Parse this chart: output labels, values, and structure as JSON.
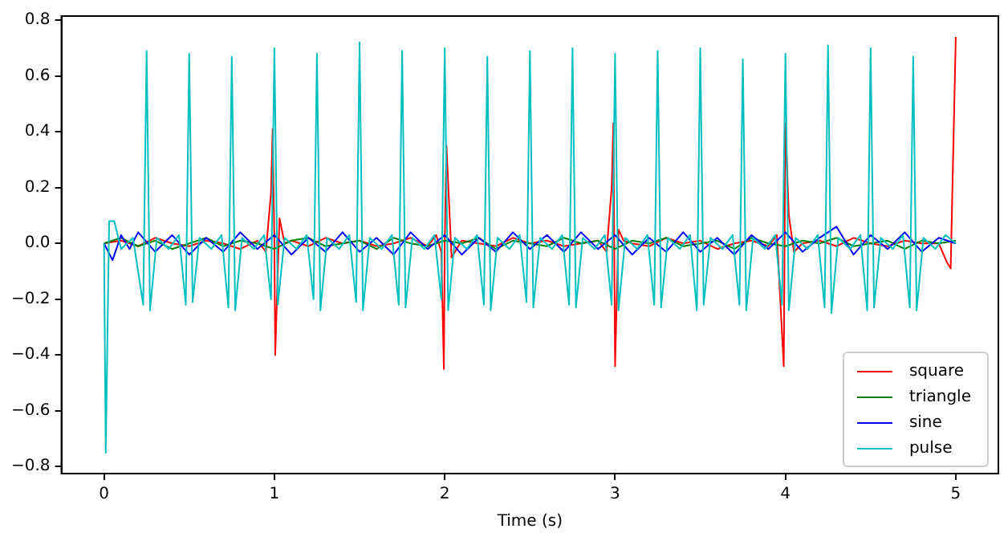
{
  "chart_data": {
    "type": "line",
    "xlabel": "Time (s)",
    "xlim": [
      -0.25,
      5.25
    ],
    "ylim": [
      -0.825,
      0.815
    ],
    "xticks": [
      0,
      1,
      2,
      3,
      4,
      5
    ],
    "yticks": [
      {
        "value": -0.8,
        "label": "−0.8"
      },
      {
        "value": -0.6,
        "label": "−0.6"
      },
      {
        "value": -0.4,
        "label": "−0.4"
      },
      {
        "value": -0.2,
        "label": "−0.2"
      },
      {
        "value": 0,
        "label": "0.0"
      },
      0.2,
      0.4,
      0.6,
      0.8
    ],
    "grid": false,
    "legend": "bottom right",
    "marker": "none",
    "line_style": "solid",
    "series": [
      {
        "name": "square",
        "color": "#ff0000",
        "x": [
          0,
          0.1,
          0.2,
          0.3,
          0.4,
          0.5,
          0.6,
          0.7,
          0.8,
          0.9,
          0.95,
          0.98,
          0.99,
          1.0,
          1.005,
          1.02,
          1.03,
          1.06,
          1.1,
          1.2,
          1.3,
          1.4,
          1.5,
          1.6,
          1.7,
          1.8,
          1.9,
          1.95,
          1.98,
          1.995,
          2.0,
          2.01,
          2.02,
          2.04,
          2.1,
          2.2,
          2.3,
          2.4,
          2.5,
          2.6,
          2.7,
          2.8,
          2.9,
          2.95,
          2.98,
          2.99,
          3.0,
          3.02,
          3.05,
          3.1,
          3.2,
          3.3,
          3.4,
          3.5,
          3.6,
          3.7,
          3.8,
          3.9,
          3.95,
          3.99,
          4.0,
          4.02,
          4.05,
          4.1,
          4.2,
          4.3,
          4.4,
          4.5,
          4.6,
          4.7,
          4.8,
          4.9,
          4.95,
          4.97,
          5.0
        ],
        "values": [
          0.0,
          0.01,
          -0.01,
          0.02,
          0.0,
          -0.01,
          0.01,
          0.0,
          -0.02,
          0.01,
          -0.03,
          0.18,
          0.41,
          0.0,
          -0.4,
          -0.1,
          0.09,
          0.0,
          0.01,
          -0.01,
          0.02,
          0.0,
          0.01,
          -0.01,
          0.0,
          0.02,
          -0.01,
          0.03,
          -0.03,
          -0.45,
          0.0,
          0.35,
          0.22,
          -0.05,
          0.01,
          0.0,
          -0.01,
          0.02,
          0.0,
          0.01,
          -0.01,
          0.0,
          0.01,
          -0.03,
          0.2,
          0.43,
          -0.44,
          0.05,
          0.01,
          0.0,
          -0.01,
          0.02,
          0.0,
          0.01,
          -0.02,
          0.0,
          0.01,
          -0.01,
          0.03,
          -0.44,
          0.43,
          0.1,
          -0.03,
          0.0,
          0.01,
          -0.01,
          0.02,
          0.0,
          -0.01,
          0.01,
          0.0,
          0.0,
          -0.07,
          -0.09,
          0.74
        ]
      },
      {
        "name": "triangle",
        "color": "#008000",
        "x": [
          0,
          0.1,
          0.2,
          0.3,
          0.4,
          0.5,
          0.6,
          0.7,
          0.8,
          0.9,
          1.0,
          1.1,
          1.2,
          1.3,
          1.4,
          1.5,
          1.6,
          1.7,
          1.8,
          1.9,
          2.0,
          2.1,
          2.2,
          2.3,
          2.4,
          2.5,
          2.6,
          2.7,
          2.8,
          2.9,
          3.0,
          3.1,
          3.2,
          3.3,
          3.4,
          3.5,
          3.6,
          3.7,
          3.8,
          3.9,
          4.0,
          4.1,
          4.2,
          4.3,
          4.4,
          4.5,
          4.6,
          4.7,
          4.8,
          4.9,
          5.0
        ],
        "values": [
          0.0,
          0.02,
          -0.01,
          0.01,
          -0.02,
          0.0,
          0.02,
          -0.01,
          0.01,
          0.0,
          -0.02,
          0.01,
          0.02,
          -0.01,
          0.0,
          0.01,
          -0.02,
          0.02,
          0.0,
          -0.01,
          0.01,
          0.0,
          0.02,
          -0.02,
          0.01,
          0.0,
          -0.01,
          0.02,
          0.0,
          0.01,
          -0.02,
          0.01,
          0.0,
          0.02,
          -0.01,
          0.0,
          0.01,
          -0.02,
          0.02,
          0.0,
          -0.01,
          0.01,
          0.0,
          0.02,
          -0.01,
          0.0,
          0.01,
          -0.02,
          0.01,
          0.0,
          0.01
        ]
      },
      {
        "name": "sine",
        "color": "#0000ff",
        "x": [
          0,
          0.05,
          0.1,
          0.15,
          0.2,
          0.3,
          0.4,
          0.5,
          0.6,
          0.7,
          0.8,
          0.9,
          1.0,
          1.1,
          1.2,
          1.3,
          1.4,
          1.5,
          1.6,
          1.7,
          1.8,
          1.9,
          2.0,
          2.1,
          2.2,
          2.3,
          2.4,
          2.5,
          2.6,
          2.7,
          2.8,
          2.9,
          3.0,
          3.1,
          3.2,
          3.3,
          3.4,
          3.5,
          3.6,
          3.7,
          3.8,
          3.9,
          4.0,
          4.1,
          4.2,
          4.3,
          4.4,
          4.5,
          4.6,
          4.7,
          4.8,
          4.9,
          5.0
        ],
        "values": [
          0.0,
          -0.06,
          0.03,
          -0.02,
          0.04,
          -0.03,
          0.03,
          -0.04,
          0.02,
          -0.03,
          0.04,
          -0.02,
          0.03,
          -0.04,
          0.02,
          -0.03,
          0.04,
          -0.03,
          0.02,
          -0.04,
          0.04,
          -0.02,
          0.03,
          -0.04,
          0.02,
          -0.03,
          0.04,
          -0.02,
          0.03,
          -0.03,
          0.04,
          -0.02,
          0.03,
          -0.04,
          0.02,
          -0.03,
          0.04,
          -0.03,
          0.02,
          -0.04,
          0.03,
          -0.02,
          0.04,
          -0.03,
          0.02,
          0.06,
          -0.04,
          0.03,
          -0.02,
          0.04,
          -0.03,
          0.02,
          0.0
        ]
      },
      {
        "name": "pulse",
        "color": "#00bfbf",
        "x": [
          0,
          0.01,
          0.03,
          0.06,
          0.1,
          0.17,
          0.23,
          0.25,
          0.27,
          0.31,
          0.38,
          0.44,
          0.48,
          0.5,
          0.52,
          0.56,
          0.63,
          0.69,
          0.73,
          0.75,
          0.77,
          0.81,
          0.88,
          0.94,
          0.98,
          1.0,
          1.02,
          1.06,
          1.13,
          1.19,
          1.23,
          1.25,
          1.27,
          1.31,
          1.38,
          1.44,
          1.48,
          1.5,
          1.52,
          1.56,
          1.63,
          1.69,
          1.73,
          1.75,
          1.77,
          1.81,
          1.88,
          1.94,
          1.98,
          2.0,
          2.02,
          2.06,
          2.13,
          2.19,
          2.23,
          2.25,
          2.27,
          2.31,
          2.38,
          2.44,
          2.48,
          2.5,
          2.52,
          2.56,
          2.63,
          2.69,
          2.73,
          2.75,
          2.77,
          2.81,
          2.88,
          2.94,
          2.98,
          3.0,
          3.02,
          3.06,
          3.13,
          3.19,
          3.23,
          3.25,
          3.27,
          3.31,
          3.38,
          3.44,
          3.48,
          3.5,
          3.52,
          3.56,
          3.63,
          3.69,
          3.73,
          3.75,
          3.77,
          3.81,
          3.88,
          3.94,
          3.98,
          4.0,
          4.02,
          4.06,
          4.13,
          4.19,
          4.23,
          4.25,
          4.27,
          4.31,
          4.38,
          4.44,
          4.48,
          4.5,
          4.52,
          4.56,
          4.63,
          4.69,
          4.73,
          4.75,
          4.77,
          4.81,
          4.88,
          4.94,
          5.0
        ],
        "values": [
          0.0,
          -0.75,
          0.08,
          0.08,
          -0.02,
          0.02,
          -0.22,
          0.69,
          -0.24,
          0.02,
          -0.02,
          0.03,
          -0.22,
          0.68,
          -0.21,
          0.02,
          -0.02,
          0.03,
          -0.23,
          0.67,
          -0.24,
          0.02,
          -0.02,
          0.03,
          -0.2,
          0.7,
          -0.22,
          0.02,
          -0.02,
          0.03,
          -0.2,
          0.68,
          -0.24,
          0.02,
          -0.02,
          0.03,
          -0.21,
          0.72,
          -0.24,
          0.02,
          -0.02,
          0.03,
          -0.22,
          0.69,
          -0.23,
          0.02,
          -0.02,
          0.03,
          -0.2,
          0.7,
          -0.24,
          0.02,
          -0.02,
          0.03,
          -0.22,
          0.67,
          -0.24,
          0.02,
          -0.02,
          0.03,
          -0.21,
          0.69,
          -0.23,
          0.02,
          -0.02,
          0.03,
          -0.22,
          0.7,
          -0.23,
          0.02,
          -0.02,
          0.03,
          -0.22,
          0.68,
          -0.24,
          0.02,
          -0.02,
          0.03,
          -0.22,
          0.69,
          -0.23,
          0.02,
          -0.02,
          0.03,
          -0.24,
          0.7,
          -0.22,
          0.02,
          -0.02,
          0.03,
          -0.22,
          0.66,
          -0.24,
          0.02,
          -0.02,
          0.03,
          -0.22,
          0.68,
          -0.24,
          0.02,
          -0.02,
          0.03,
          -0.23,
          0.71,
          -0.25,
          0.02,
          -0.02,
          0.03,
          -0.24,
          0.7,
          -0.23,
          0.02,
          -0.02,
          0.03,
          -0.23,
          0.67,
          -0.24,
          0.02,
          -0.02,
          0.03,
          0.0
        ]
      }
    ]
  }
}
